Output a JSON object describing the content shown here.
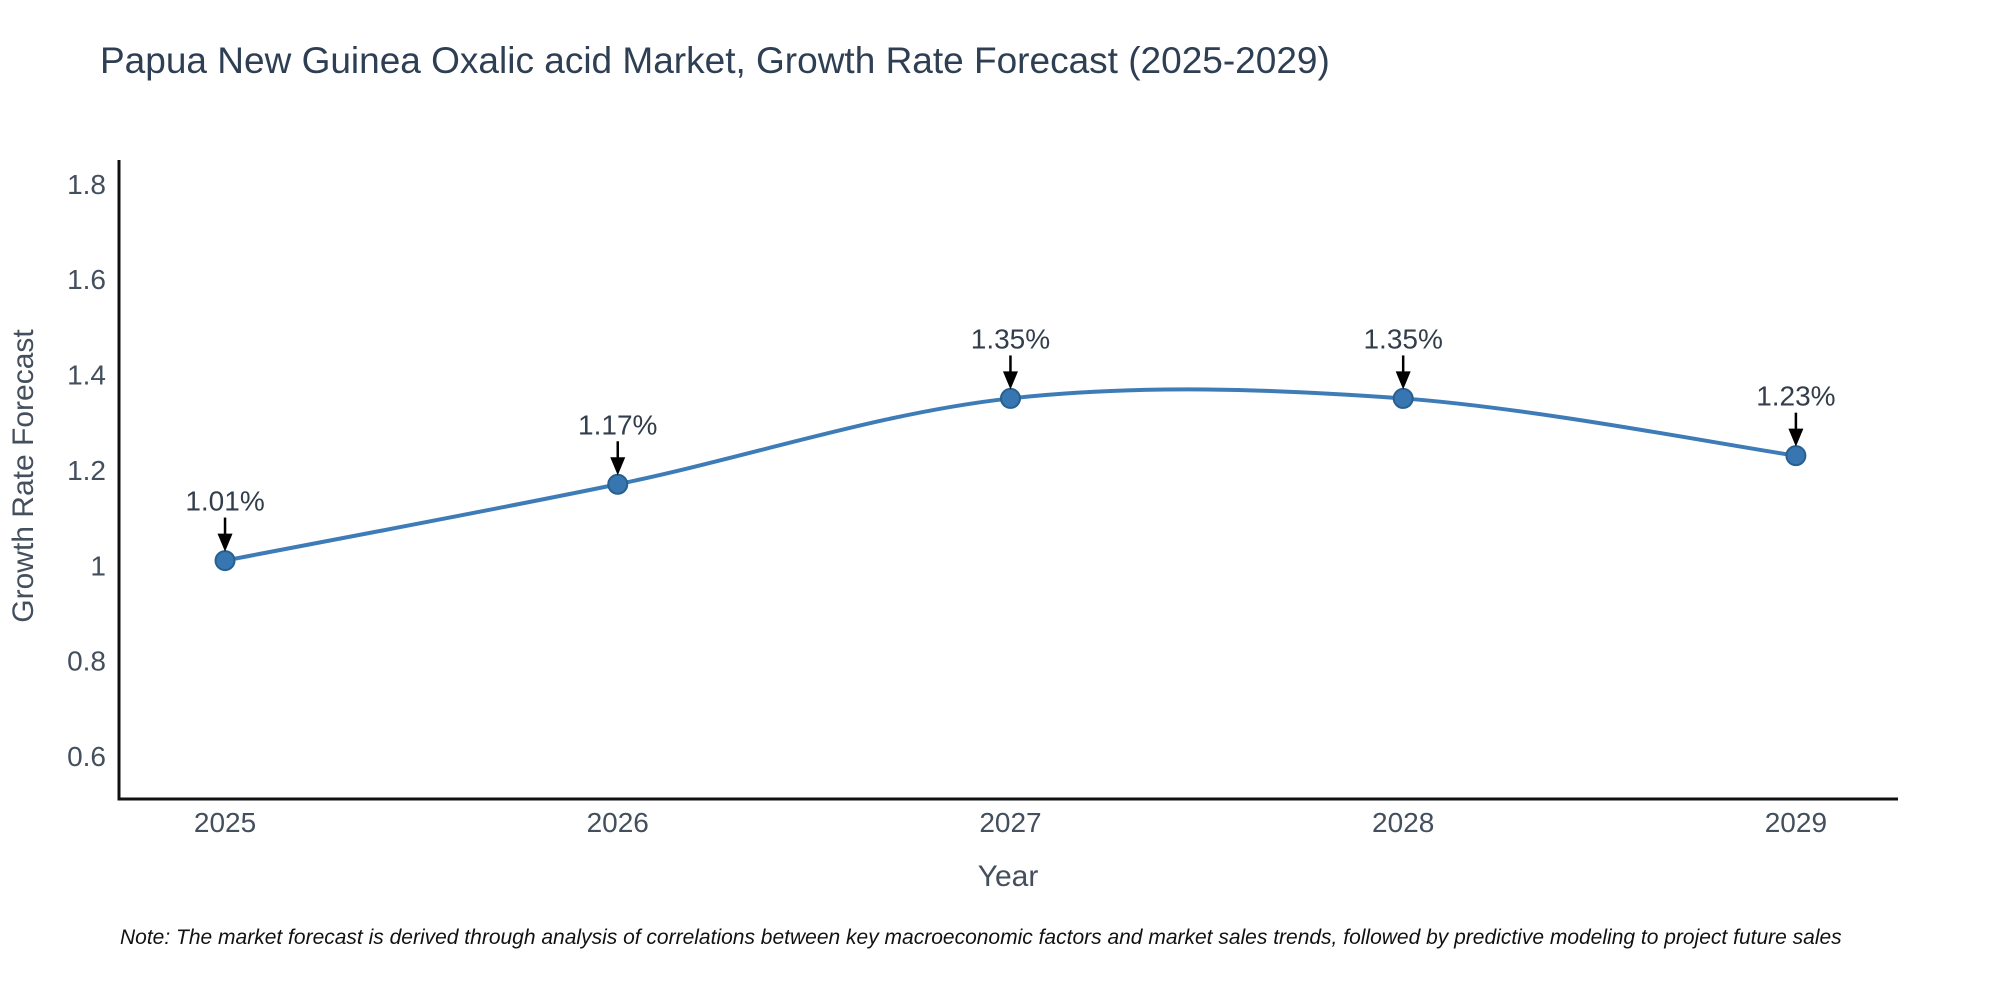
{
  "page": {
    "title": "Papua New Guinea Oxalic acid Market, Growth Rate Forecast (2025-2029)",
    "note": "Note: The market forecast is derived through analysis of correlations between key macroeconomic factors and market sales trends, followed by predictive modeling to project future sales"
  },
  "chart_data": {
    "type": "line",
    "title": "Papua New Guinea Oxalic acid Market, Growth Rate Forecast (2025-2029)",
    "xlabel": "Year",
    "ylabel": "Growth Rate Forecast",
    "x": [
      2025,
      2026,
      2027,
      2028,
      2029
    ],
    "series": [
      {
        "name": "Growth Rate Forecast",
        "values": [
          1.01,
          1.17,
          1.35,
          1.35,
          1.23
        ]
      }
    ],
    "point_labels": [
      "1.01%",
      "1.17%",
      "1.35%",
      "1.35%",
      "1.23%"
    ],
    "y_ticks": [
      1.8,
      1.6,
      1.4,
      1.2,
      1,
      0.8,
      0.6
    ],
    "xlim": [
      2024.73,
      2029.26
    ],
    "ylim": [
      0.51,
      1.85
    ],
    "line_shape": "spline",
    "grid": false,
    "legend": false,
    "colors": {
      "line": "#3e7cb7",
      "marker": "#3776b1",
      "marker_edge": "#26608f",
      "axis": "#111111",
      "title_text": "#2e3f54",
      "tick_text": "#444f5d",
      "annotation_text": "#333e4c",
      "arrow": "#000000",
      "note_text": "#111111"
    }
  }
}
